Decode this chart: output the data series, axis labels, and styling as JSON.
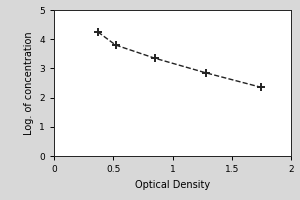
{
  "xlabel": "Optical Density",
  "ylabel": "Log. of concentration",
  "xlim": [
    0,
    2
  ],
  "ylim": [
    0,
    5
  ],
  "xticks": [
    0,
    0.5,
    1,
    1.5,
    2
  ],
  "xtick_labels": [
    "0",
    "0.5",
    "1",
    "1.5",
    "2"
  ],
  "yticks": [
    0,
    1,
    2,
    3,
    4,
    5
  ],
  "ytick_labels": [
    "0",
    "1",
    "2",
    "3",
    "4",
    "5"
  ],
  "data_x": [
    0.37,
    0.52,
    0.85,
    1.28,
    1.75
  ],
  "data_y": [
    4.25,
    3.8,
    3.35,
    2.85,
    2.35
  ],
  "line_color": "#222222",
  "marker_color": "#222222",
  "background_color": "#d8d8d8",
  "plot_bg_color": "#ffffff",
  "line_style": "--",
  "marker_style": "+",
  "marker_size": 6,
  "line_width": 1.0,
  "xlabel_fontsize": 7,
  "ylabel_fontsize": 7,
  "tick_fontsize": 6.5
}
